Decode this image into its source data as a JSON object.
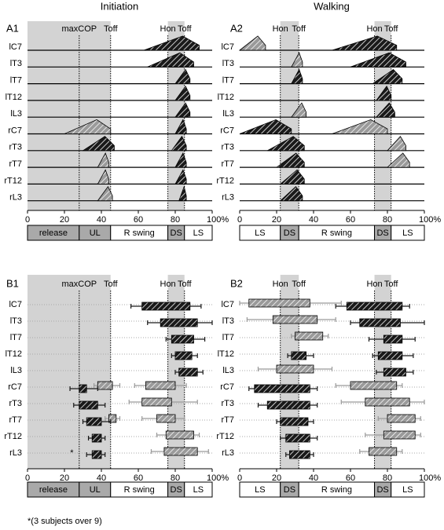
{
  "titles": [
    "Initiation",
    "Walking"
  ],
  "footnote": "*(3 subjects over 9)",
  "chart_data": [
    {
      "type": "burst",
      "panel": "A1",
      "rows": [
        "lC7",
        "lT3",
        "lT7",
        "lT12",
        "lL3",
        "rC7",
        "rT3",
        "rT7",
        "rT12",
        "rL3"
      ],
      "dark": [
        [
          [
            63,
            93
          ]
        ],
        [
          [
            65,
            90
          ]
        ],
        [
          [
            80,
            88
          ]
        ],
        [
          [
            80,
            88
          ]
        ],
        [
          [
            80,
            88
          ]
        ],
        [
          [
            80,
            86
          ]
        ],
        [
          [
            30,
            47
          ],
          [
            78,
            86
          ]
        ],
        [
          [
            80,
            86
          ]
        ],
        [
          [
            80,
            86
          ]
        ],
        [
          [
            82,
            86
          ]
        ]
      ],
      "light": [
        [],
        [],
        [],
        [],
        [],
        [
          [
            20,
            45
          ]
        ],
        [],
        [
          [
            38,
            44
          ]
        ],
        [
          [
            38,
            44
          ]
        ],
        [
          [
            38,
            46
          ]
        ]
      ],
      "dark_color": "#1a1a1a",
      "light_color": "#9a9a9a",
      "shade_color": "#d3d3d3",
      "shaded": [
        [
          0,
          45
        ],
        [
          76,
          85
        ]
      ],
      "events": [
        {
          "label": "maxCOP",
          "value": 28
        },
        {
          "label": "Toff",
          "value": 45
        },
        {
          "label": "Hon",
          "value": 76
        },
        {
          "label": "Toff",
          "value": 85
        }
      ],
      "phases": [
        {
          "label": "release",
          "start": 0,
          "end": 28,
          "shaded": true
        },
        {
          "label": "UL",
          "start": 28,
          "end": 45,
          "shaded": true
        },
        {
          "label": "R swing",
          "start": 45,
          "end": 76,
          "shaded": false
        },
        {
          "label": "DS",
          "start": 76,
          "end": 85,
          "shaded": true
        },
        {
          "label": "LS",
          "start": 85,
          "end": 100,
          "shaded": false
        }
      ],
      "xlim": [
        0,
        100
      ],
      "xticks": [
        0,
        20,
        40,
        60,
        80,
        {
          "value": 100,
          "label": "100%"
        }
      ]
    },
    {
      "type": "burst",
      "panel": "A2",
      "rows": [
        "lC7",
        "lT3",
        "lT7",
        "lT12",
        "lL3",
        "rC7",
        "rT3",
        "rT7",
        "rT12",
        "rL3"
      ],
      "dark": [
        [
          [
            50,
            85
          ]
        ],
        [
          [
            60,
            90
          ]
        ],
        [
          [
            28,
            34
          ],
          [
            72,
            88
          ]
        ],
        [
          [
            74,
            82
          ]
        ],
        [
          [
            74,
            84
          ]
        ],
        [
          [
            0,
            28
          ]
        ],
        [
          [
            15,
            35
          ]
        ],
        [
          [
            20,
            35
          ]
        ],
        [
          [
            22,
            35
          ]
        ],
        [
          [
            22,
            34
          ]
        ]
      ],
      "light": [
        [
          [
            0,
            14
          ]
        ],
        [
          [
            28,
            34
          ]
        ],
        [],
        [],
        [
          [
            28,
            36
          ]
        ],
        [
          [
            50,
            80
          ]
        ],
        [
          [
            80,
            90
          ]
        ],
        [
          [
            80,
            92
          ]
        ],
        [],
        []
      ],
      "dark_color": "#1a1a1a",
      "light_color": "#9a9a9a",
      "shade_color": "#d3d3d3",
      "shaded": [
        [
          22,
          32
        ],
        [
          73,
          82
        ]
      ],
      "events": [
        {
          "label": "Hon",
          "value": 22
        },
        {
          "label": "Toff",
          "value": 32
        },
        {
          "label": "Hon",
          "value": 73
        },
        {
          "label": "Toff",
          "value": 82
        }
      ],
      "phases": [
        {
          "label": "LS",
          "start": 0,
          "end": 22,
          "shaded": false
        },
        {
          "label": "DS",
          "start": 22,
          "end": 32,
          "shaded": true
        },
        {
          "label": "R swing",
          "start": 32,
          "end": 73,
          "shaded": false
        },
        {
          "label": "DS",
          "start": 73,
          "end": 82,
          "shaded": true
        },
        {
          "label": "LS",
          "start": 82,
          "end": 100,
          "shaded": false
        }
      ],
      "xlim": [
        0,
        100
      ],
      "xticks": [
        0,
        20,
        40,
        60,
        80,
        {
          "value": 100,
          "label": "100%"
        }
      ]
    },
    {
      "type": "interval",
      "panel": "B1",
      "rows": [
        "lC7",
        "lT3",
        "lT7",
        "lT12",
        "lL3",
        "rC7",
        "rT3",
        "rT7",
        "rT12",
        "rL3"
      ],
      "dark": [
        [
          [
            62,
            88,
            56,
            94
          ]
        ],
        [
          [
            72,
            92,
            65,
            100
          ]
        ],
        [
          [
            78,
            90,
            75,
            96
          ]
        ],
        [
          [
            80,
            89,
            78,
            92
          ]
        ],
        [
          [
            82,
            92,
            80,
            95
          ]
        ],
        [
          [
            28,
            32,
            23,
            38
          ]
        ],
        [
          [
            28,
            38,
            25,
            42
          ]
        ],
        [
          [
            32,
            40,
            30,
            45
          ]
        ],
        [
          [
            35,
            40,
            33,
            42
          ]
        ],
        [
          [
            35,
            40,
            32,
            42
          ]
        ]
      ],
      "light": [
        [],
        [],
        [],
        [],
        [],
        [
          [
            38,
            46,
            36,
            50
          ],
          [
            64,
            80,
            58,
            86
          ]
        ],
        [
          [
            62,
            78,
            55,
            92
          ]
        ],
        [
          [
            44,
            48,
            42,
            50
          ],
          [
            70,
            80,
            62,
            85
          ]
        ],
        [
          [
            75,
            90,
            70,
            93
          ]
        ],
        [
          [
            74,
            92,
            67,
            98
          ]
        ]
      ],
      "dark_color": "#1a1a1a",
      "light_color": "#9a9a9a",
      "shade_color": "#d3d3d3",
      "shaded": [
        [
          0,
          45
        ],
        [
          76,
          85
        ]
      ],
      "events": [
        {
          "label": "maxCOP",
          "value": 28
        },
        {
          "label": "Toff",
          "value": 45
        },
        {
          "label": "Hon",
          "value": 76
        },
        {
          "label": "Toff",
          "value": 85
        }
      ],
      "phases": [
        {
          "label": "release",
          "start": 0,
          "end": 28,
          "shaded": true
        },
        {
          "label": "UL",
          "start": 28,
          "end": 45,
          "shaded": true
        },
        {
          "label": "R swing",
          "start": 45,
          "end": 76,
          "shaded": false
        },
        {
          "label": "DS",
          "start": 76,
          "end": 85,
          "shaded": true
        },
        {
          "label": "LS",
          "start": 85,
          "end": 100,
          "shaded": false
        }
      ],
      "annotation": {
        "text": "*",
        "x": 24,
        "row": 9
      },
      "xlim": [
        0,
        100
      ],
      "xticks": [
        0,
        20,
        40,
        60,
        80,
        {
          "value": 100,
          "label": "100%"
        }
      ]
    },
    {
      "type": "interval",
      "panel": "B2",
      "rows": [
        "lC7",
        "lT3",
        "lT7",
        "lT12",
        "lL3",
        "rC7",
        "rT3",
        "rT7",
        "rT12",
        "rL3"
      ],
      "dark": [
        [
          [
            58,
            88,
            52,
            92
          ]
        ],
        [
          [
            65,
            87,
            60,
            100
          ]
        ],
        [
          [
            78,
            88,
            70,
            95
          ]
        ],
        [
          [
            28,
            36,
            26,
            40
          ],
          [
            75,
            88,
            72,
            94
          ]
        ],
        [
          [
            78,
            90,
            74,
            94
          ]
        ],
        [
          [
            8,
            38,
            5,
            42
          ]
        ],
        [
          [
            15,
            38,
            10,
            42
          ]
        ],
        [
          [
            22,
            37,
            20,
            40
          ]
        ],
        [
          [
            25,
            38,
            22,
            42
          ]
        ],
        [
          [
            27,
            38,
            25,
            40
          ]
        ]
      ],
      "light": [
        [
          [
            5,
            38,
            0,
            55
          ]
        ],
        [
          [
            18,
            42,
            4,
            52
          ]
        ],
        [
          [
            30,
            45,
            28,
            48
          ]
        ],
        [],
        [
          [
            20,
            40,
            10,
            50
          ]
        ],
        [
          [
            60,
            85,
            52,
            88
          ]
        ],
        [
          [
            68,
            92,
            55,
            100
          ]
        ],
        [
          [
            80,
            95,
            75,
            98
          ]
        ],
        [
          [
            78,
            95,
            68,
            98
          ]
        ],
        [
          [
            70,
            85,
            65,
            88
          ]
        ]
      ],
      "dark_color": "#1a1a1a",
      "light_color": "#9a9a9a",
      "shade_color": "#d3d3d3",
      "shaded": [
        [
          22,
          32
        ],
        [
          73,
          82
        ]
      ],
      "events": [
        {
          "label": "Hon",
          "value": 22
        },
        {
          "label": "Toff",
          "value": 32
        },
        {
          "label": "Hon",
          "value": 73
        },
        {
          "label": "Toff",
          "value": 82
        }
      ],
      "phases": [
        {
          "label": "LS",
          "start": 0,
          "end": 22,
          "shaded": false
        },
        {
          "label": "DS",
          "start": 22,
          "end": 32,
          "shaded": true
        },
        {
          "label": "R swing",
          "start": 32,
          "end": 73,
          "shaded": false
        },
        {
          "label": "DS",
          "start": 73,
          "end": 82,
          "shaded": true
        },
        {
          "label": "LS",
          "start": 82,
          "end": 100,
          "shaded": false
        }
      ],
      "xlim": [
        0,
        100
      ],
      "xticks": [
        0,
        20,
        40,
        60,
        80,
        {
          "value": 100,
          "label": "100%"
        }
      ]
    }
  ]
}
